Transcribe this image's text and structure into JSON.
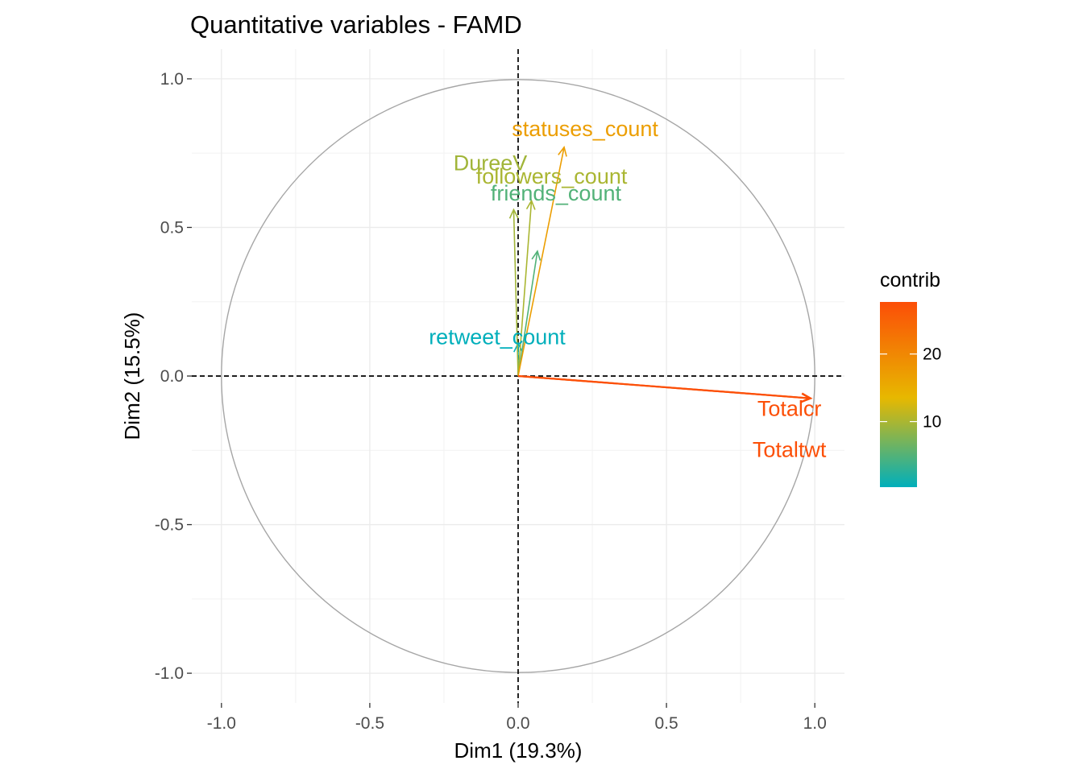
{
  "chart_data": {
    "type": "scatter",
    "subtype": "correlation-circle",
    "title": "Quantitative variables - FAMD",
    "xlabel": "Dim1 (19.3%)",
    "ylabel": "Dim2 (15.5%)",
    "xlim": [
      -1.1,
      1.1
    ],
    "ylim": [
      -1.1,
      1.1
    ],
    "xticks": [
      -1.0,
      -0.5,
      0.0,
      0.5,
      1.0
    ],
    "yticks": [
      -1.0,
      -0.5,
      0.0,
      0.5,
      1.0
    ],
    "xtick_labels": [
      "-1.0",
      "-0.5",
      "0.0",
      "0.5",
      "1.0"
    ],
    "ytick_labels": [
      "-1.0",
      "-0.5",
      "0.0",
      "0.5",
      "1.0"
    ],
    "grid": true,
    "unit_circle": true,
    "reference_lines": {
      "x": 0,
      "y": 0,
      "style": "dashed"
    },
    "legend": {
      "title": "contrib",
      "position": "right",
      "range": [
        0.3,
        27.7
      ],
      "ticks": [
        10,
        20
      ],
      "tick_labels": [
        "10",
        "20"
      ],
      "gradient": [
        {
          "value": 0.3,
          "color": "#00AFBB"
        },
        {
          "value": 13.5,
          "color": "#E7B800"
        },
        {
          "value": 27.7,
          "color": "#FC4E07"
        }
      ]
    },
    "variables": [
      {
        "name": "retweet_count",
        "x": 0.0,
        "y": 0.11,
        "contrib": 0.3
      },
      {
        "name": "friends_count",
        "x": 0.065,
        "y": 0.42,
        "contrib": 5.0
      },
      {
        "name": "DureeV",
        "x": -0.015,
        "y": 0.56,
        "contrib": 9.5
      },
      {
        "name": "followers_count",
        "x": 0.045,
        "y": 0.59,
        "contrib": 10.0
      },
      {
        "name": "statuses_count",
        "x": 0.155,
        "y": 0.77,
        "contrib": 17.0
      },
      {
        "name": "Totalcr",
        "x": 0.985,
        "y": -0.075,
        "contrib": 27.6
      },
      {
        "name": "Totaltwt",
        "x": 0.985,
        "y": -0.075,
        "contrib": 27.6
      }
    ]
  }
}
